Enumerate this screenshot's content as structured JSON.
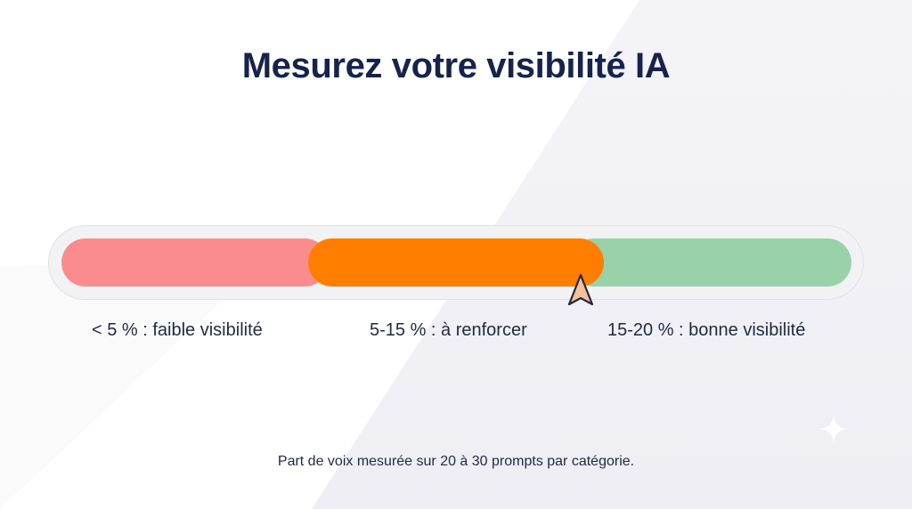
{
  "title": "Mesurez votre visibilité IA",
  "gauge": {
    "segments": [
      {
        "label": "< 5 % : faible visibilité",
        "color": "#fa8c8e"
      },
      {
        "label": "5-15 % : à renforcer",
        "color": "#ff7e00"
      },
      {
        "label": "15-20 % : bonne visibilité",
        "color": "#99d1a9"
      }
    ],
    "marker_icon": "pointer-arrow-icon",
    "marker_color": "#f6c19a"
  },
  "footnote": "Part de voix mesurée sur 20 à 30 prompts par catégorie.",
  "decoration": {
    "icon": "sparkle-icon"
  },
  "colors": {
    "title": "#16234d",
    "text": "#1f2a45",
    "background": "#ffffff",
    "background_shape": "#f1f1f6"
  }
}
